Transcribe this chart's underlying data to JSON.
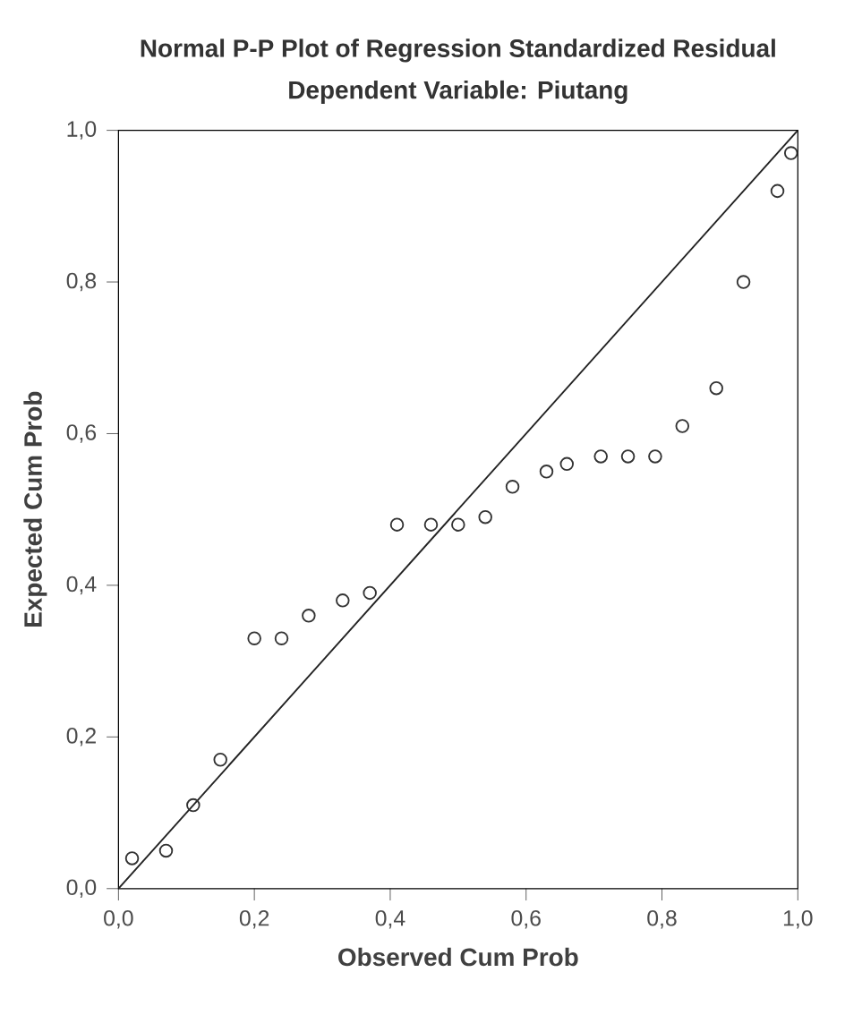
{
  "chart_data": {
    "type": "scatter",
    "title": "Normal P-P Plot of Regression Standardized Residual",
    "subtitle": "Dependent Variable: Piutang",
    "xlabel": "Observed Cum Prob",
    "ylabel": "Expected Cum Prob",
    "xlim": [
      0,
      1
    ],
    "ylim": [
      0,
      1
    ],
    "xticks": [
      {
        "value": 0,
        "label": "0,0"
      },
      {
        "value": 0.2,
        "label": "0,2"
      },
      {
        "value": 0.4,
        "label": "0,4"
      },
      {
        "value": 0.6,
        "label": "0,6"
      },
      {
        "value": 0.8,
        "label": "0,8"
      },
      {
        "value": 1,
        "label": "1,0"
      }
    ],
    "yticks": [
      {
        "value": 0,
        "label": "0,0"
      },
      {
        "value": 0.2,
        "label": "0,2"
      },
      {
        "value": 0.4,
        "label": "0,4"
      },
      {
        "value": 0.6,
        "label": "0,6"
      },
      {
        "value": 0.8,
        "label": "0,8"
      },
      {
        "value": 1,
        "label": "1,0"
      }
    ],
    "grid": false,
    "series": [
      {
        "marker": "circle",
        "color": "#333333",
        "x": [
          0.02,
          0.07,
          0.11,
          0.15,
          0.2,
          0.24,
          0.28,
          0.33,
          0.37,
          0.41,
          0.46,
          0.5,
          0.54,
          0.58,
          0.63,
          0.66,
          0.71,
          0.75,
          0.79,
          0.83,
          0.88,
          0.92,
          0.97,
          0.99
        ],
        "values": [
          0.04,
          0.05,
          0.11,
          0.17,
          0.33,
          0.33,
          0.36,
          0.38,
          0.39,
          0.48,
          0.48,
          0.48,
          0.49,
          0.53,
          0.55,
          0.56,
          0.57,
          0.57,
          0.57,
          0.61,
          0.66,
          0.8,
          0.92,
          0.97
        ]
      },
      {
        "type": "line",
        "marker": "none",
        "color": "#222222",
        "x": [
          0,
          1
        ],
        "values": [
          0,
          1
        ]
      }
    ]
  }
}
